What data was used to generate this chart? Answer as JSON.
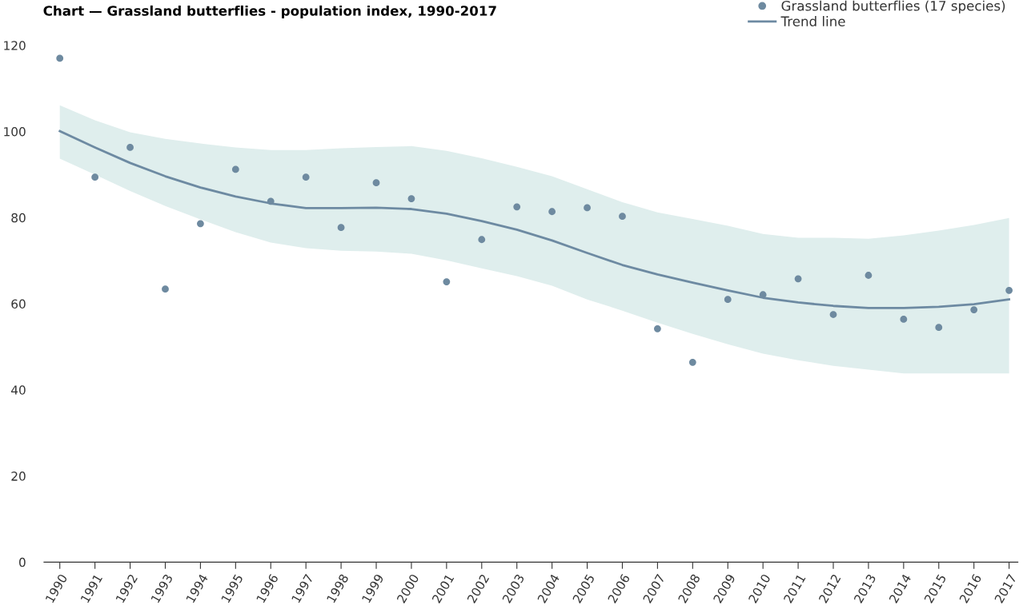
{
  "chart_data": {
    "type": "scatter",
    "title": "Chart — Grassland butterflies - population index, 1990-2017",
    "categories": [
      "1990",
      "1991",
      "1992",
      "1993",
      "1994",
      "1995",
      "1996",
      "1997",
      "1998",
      "1999",
      "2000",
      "2001",
      "2002",
      "2003",
      "2004",
      "2005",
      "2006",
      "2007",
      "2008",
      "2009",
      "2010",
      "2011",
      "2012",
      "2013",
      "2014",
      "2015",
      "2016",
      "2017"
    ],
    "series": [
      {
        "name": "Grassland butterflies (17 species)",
        "marker": "circle",
        "color": "#6e8aa0",
        "values": [
          117.0,
          89.4,
          96.3,
          63.4,
          78.6,
          91.2,
          83.8,
          89.4,
          77.7,
          88.1,
          84.4,
          65.1,
          74.9,
          82.5,
          81.4,
          82.3,
          80.3,
          54.2,
          46.4,
          61.0,
          62.1,
          65.8,
          57.5,
          66.6,
          56.4,
          54.5,
          58.6,
          63.1
        ]
      },
      {
        "name": "Trend line",
        "type": "line",
        "marker": "none",
        "line_style": "solid",
        "color": "#6d8aa2",
        "values": [
          100.1,
          96.3,
          92.7,
          89.6,
          87.0,
          84.9,
          83.3,
          82.2,
          82.2,
          82.3,
          82.0,
          80.9,
          79.2,
          77.2,
          74.7,
          71.8,
          69.0,
          66.8,
          64.9,
          63.1,
          61.4,
          60.3,
          59.5,
          59.0,
          59.0,
          59.3,
          59.9,
          61.0
        ],
        "upper": [
          106.1,
          102.6,
          99.8,
          98.3,
          97.2,
          96.3,
          95.7,
          95.7,
          96.1,
          96.4,
          96.6,
          95.5,
          93.8,
          91.8,
          89.6,
          86.6,
          83.6,
          81.2,
          79.7,
          78.1,
          76.2,
          75.3,
          75.3,
          75.1,
          75.9,
          77.0,
          78.3,
          79.9
        ],
        "lower": [
          93.7,
          90.0,
          86.2,
          82.7,
          79.6,
          76.6,
          74.2,
          72.9,
          72.3,
          72.1,
          71.6,
          70.1,
          68.2,
          66.4,
          64.2,
          61.0,
          58.4,
          55.6,
          53.0,
          50.6,
          48.4,
          46.9,
          45.6,
          44.7,
          43.8,
          43.8,
          43.8,
          43.8
        ]
      }
    ],
    "ylim": [
      0,
      120
    ],
    "yticks": [
      0,
      20,
      40,
      60,
      80,
      100,
      120
    ],
    "grid": false,
    "legend": "top right"
  }
}
